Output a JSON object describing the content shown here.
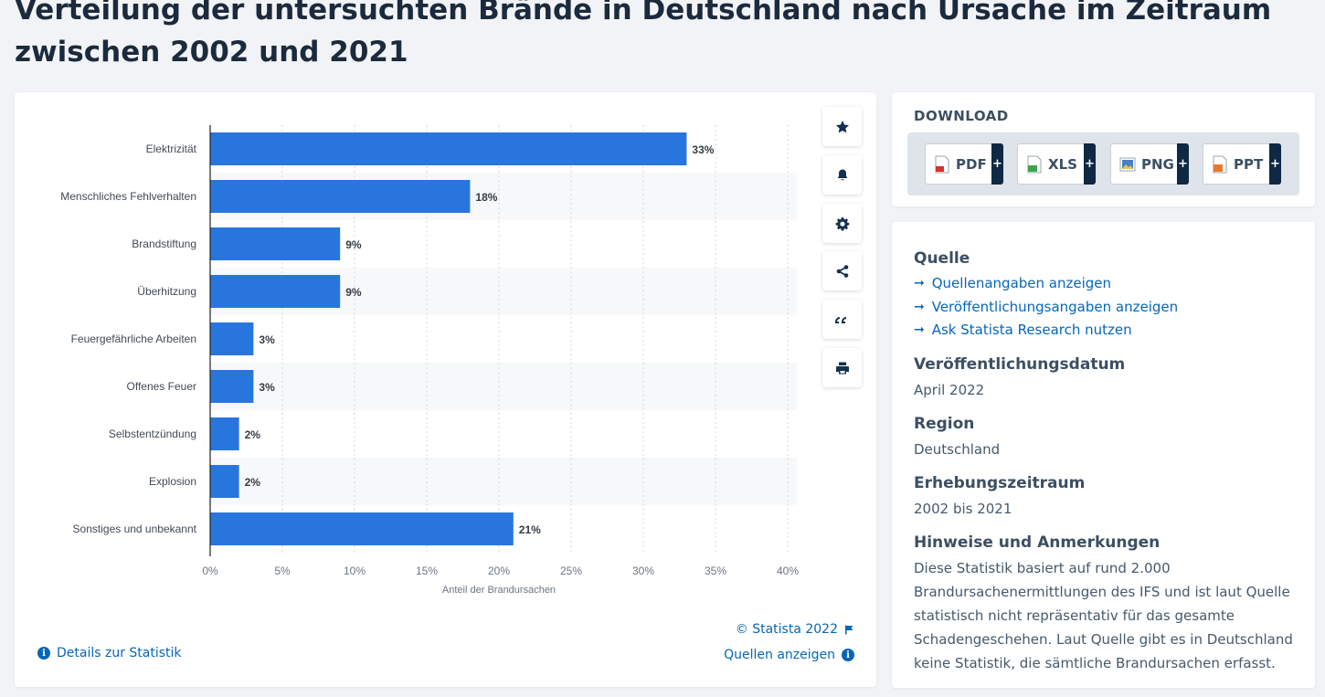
{
  "page": {
    "title": "Verteilung der untersuchten Brände in Deutschland nach Ursache im Zeitraum zwischen 2002 und 2021"
  },
  "chart_data": {
    "type": "bar",
    "orientation": "horizontal",
    "categories": [
      "Elektrizität",
      "Menschliches Fehlverhalten",
      "Brandstiftung",
      "Überhitzung",
      "Feuergefährliche Arbeiten",
      "Offenes Feuer",
      "Selbstentzündung",
      "Explosion",
      "Sonstiges und unbekannt"
    ],
    "values": [
      33,
      18,
      9,
      9,
      3,
      3,
      2,
      2,
      21
    ],
    "value_labels": [
      "33%",
      "18%",
      "9%",
      "9%",
      "3%",
      "3%",
      "2%",
      "2%",
      "21%"
    ],
    "xlabel": "Anteil der Brandursachen",
    "xlim": [
      0,
      40
    ],
    "xticks": [
      0,
      5,
      10,
      15,
      20,
      25,
      30,
      35,
      40
    ],
    "xtick_labels": [
      "0%",
      "5%",
      "10%",
      "15%",
      "20%",
      "25%",
      "30%",
      "35%",
      "40%"
    ],
    "grid": "vertical dashed",
    "bar_color": "#2876dd"
  },
  "chart_footer": {
    "details_label": "Details zur Statistik",
    "copyright": "© Statista 2022",
    "sources_label": "Quellen anzeigen"
  },
  "toolbar": {
    "icons": [
      "star-icon",
      "bell-icon",
      "gear-icon",
      "share-icon",
      "quote-icon",
      "print-icon"
    ]
  },
  "download": {
    "heading": "DOWNLOAD",
    "buttons": [
      {
        "label": "PDF",
        "color": "#d9302c"
      },
      {
        "label": "XLS",
        "color": "#3aa64a"
      },
      {
        "label": "PNG",
        "color": "#4a7fc1"
      },
      {
        "label": "PPT",
        "color": "#e8782a"
      }
    ],
    "plus": "+"
  },
  "info": {
    "source_heading": "Quelle",
    "source_links": [
      "Quellenangaben anzeigen",
      "Veröffentlichungsangaben anzeigen",
      "Ask Statista Research nutzen"
    ],
    "pub_heading": "Veröffentlichungsdatum",
    "pub_value": "April 2022",
    "region_heading": "Region",
    "region_value": "Deutschland",
    "period_heading": "Erhebungszeitraum",
    "period_value": "2002 bis 2021",
    "notes_heading": "Hinweise und Anmerkungen",
    "notes_text": "Diese Statistik basiert auf rund 2.000 Brandursachenermittlungen des IFS und ist laut Quelle statistisch nicht repräsentativ für das gesamte Schadengeschehen. Laut Quelle gibt es in Deutschland keine Statistik, die sämtliche Brandursachen erfasst."
  }
}
